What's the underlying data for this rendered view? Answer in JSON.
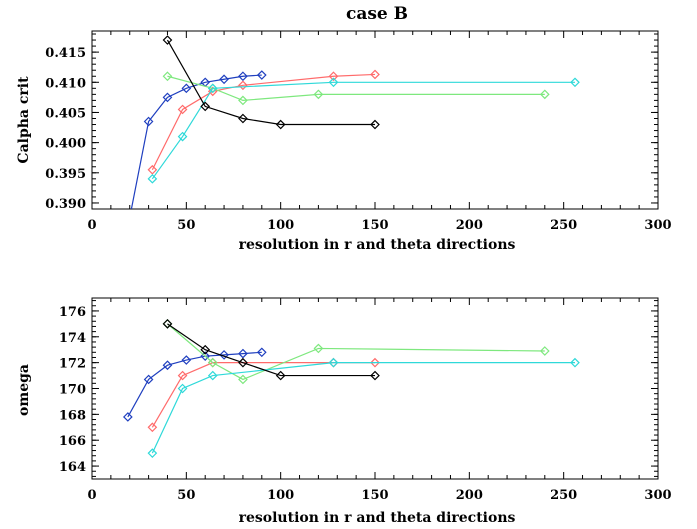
{
  "chart_data": [
    {
      "type": "line",
      "title": "case B",
      "xlabel": "resolution in r and theta directions",
      "ylabel": "Calpha crit",
      "xlim": [
        0,
        300
      ],
      "ylim": [
        0.389,
        0.4185
      ],
      "xticks": [
        "0",
        "50",
        "100",
        "150",
        "200",
        "250",
        "300"
      ],
      "yticks": [
        "0.390",
        "0.395",
        "0.400",
        "0.405",
        "0.410",
        "0.415"
      ],
      "series": [
        {
          "color": "#1f3fbf",
          "x": [
            19,
            30,
            40,
            50,
            60,
            70,
            80,
            90
          ],
          "y": [
            0.386,
            0.4035,
            0.4075,
            0.409,
            0.41,
            0.4105,
            0.411,
            0.4112
          ]
        },
        {
          "color": "#ff6b6b",
          "x": [
            32,
            48,
            64,
            80,
            128,
            150
          ],
          "y": [
            0.3955,
            0.4055,
            0.4085,
            0.4095,
            0.411,
            0.4113
          ]
        },
        {
          "color": "#7ee87e",
          "x": [
            40,
            64,
            80,
            120,
            240
          ],
          "y": [
            0.411,
            0.409,
            0.407,
            0.408,
            0.408
          ]
        },
        {
          "color": "#2fd9d9",
          "x": [
            32,
            48,
            64,
            128,
            256
          ],
          "y": [
            0.394,
            0.401,
            0.409,
            0.41,
            0.41
          ]
        },
        {
          "color": "#000000",
          "x": [
            40,
            60,
            80,
            100,
            150
          ],
          "y": [
            0.417,
            0.406,
            0.404,
            0.403,
            0.403
          ]
        }
      ]
    },
    {
      "type": "line",
      "title": "",
      "xlabel": "resolution in r and theta directions",
      "ylabel": "omega",
      "xlim": [
        0,
        300
      ],
      "ylim": [
        163,
        177
      ],
      "xticks": [
        "0",
        "50",
        "100",
        "150",
        "200",
        "250",
        "300"
      ],
      "yticks": [
        "164",
        "166",
        "168",
        "170",
        "172",
        "174",
        "176"
      ],
      "series": [
        {
          "color": "#1f3fbf",
          "x": [
            19,
            30,
            40,
            50,
            60,
            70,
            80,
            90
          ],
          "y": [
            167.8,
            170.7,
            171.8,
            172.2,
            172.5,
            172.6,
            172.7,
            172.8
          ]
        },
        {
          "color": "#ff6b6b",
          "x": [
            32,
            48,
            64,
            128,
            150
          ],
          "y": [
            167.0,
            171.0,
            172.0,
            172.0,
            172.0
          ]
        },
        {
          "color": "#7ee87e",
          "x": [
            40,
            64,
            80,
            120,
            240
          ],
          "y": [
            175.0,
            172.0,
            170.7,
            173.1,
            172.9
          ]
        },
        {
          "color": "#2fd9d9",
          "x": [
            32,
            48,
            64,
            128,
            256
          ],
          "y": [
            165.0,
            170.0,
            171.0,
            172.0,
            172.0
          ]
        },
        {
          "color": "#000000",
          "x": [
            40,
            60,
            80,
            100,
            150
          ],
          "y": [
            175.0,
            173.0,
            172.0,
            171.0,
            171.0
          ]
        }
      ]
    }
  ]
}
